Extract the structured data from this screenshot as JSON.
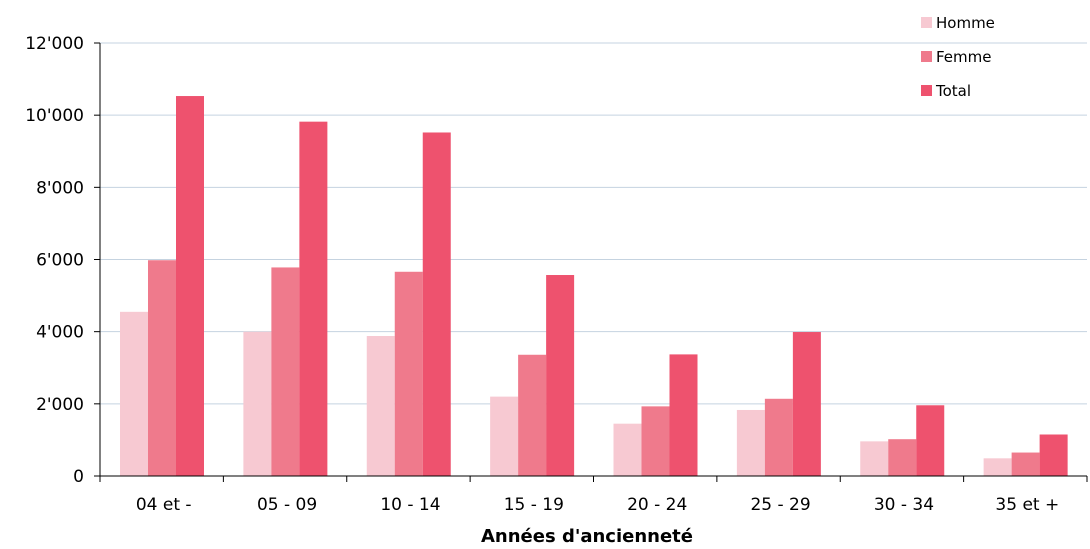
{
  "chart_data": {
    "type": "bar",
    "title": "",
    "xlabel": "Années d'ancienneté",
    "ylabel": "",
    "categories": [
      "04 et -",
      "05 - 09",
      "10 - 14",
      "15 - 19",
      "20 - 24",
      "25 - 29",
      "30 - 34",
      "35 et +"
    ],
    "series": [
      {
        "name": "Homme",
        "color": "#f7c9d2",
        "values": [
          4550,
          4000,
          3880,
          2200,
          1450,
          1830,
          960,
          490
        ]
      },
      {
        "name": "Femme",
        "color": "#ef7a8c",
        "values": [
          5980,
          5780,
          5660,
          3360,
          1930,
          2140,
          1020,
          650
        ]
      },
      {
        "name": "Total",
        "color": "#ee526e",
        "values": [
          10530,
          9820,
          9520,
          5570,
          3370,
          3990,
          1960,
          1150
        ]
      }
    ],
    "ylim": [
      0,
      12000
    ],
    "yticks": [
      {
        "value": 0,
        "label": "0"
      },
      {
        "value": 2000,
        "label": "2'000"
      },
      {
        "value": 4000,
        "label": "4'000"
      },
      {
        "value": 6000,
        "label": "6'000"
      },
      {
        "value": 8000,
        "label": "8'000"
      },
      {
        "value": 10000,
        "label": "10'000"
      },
      {
        "value": 12000,
        "label": "12'000"
      }
    ],
    "grid": true,
    "legend_position": "top-right"
  }
}
